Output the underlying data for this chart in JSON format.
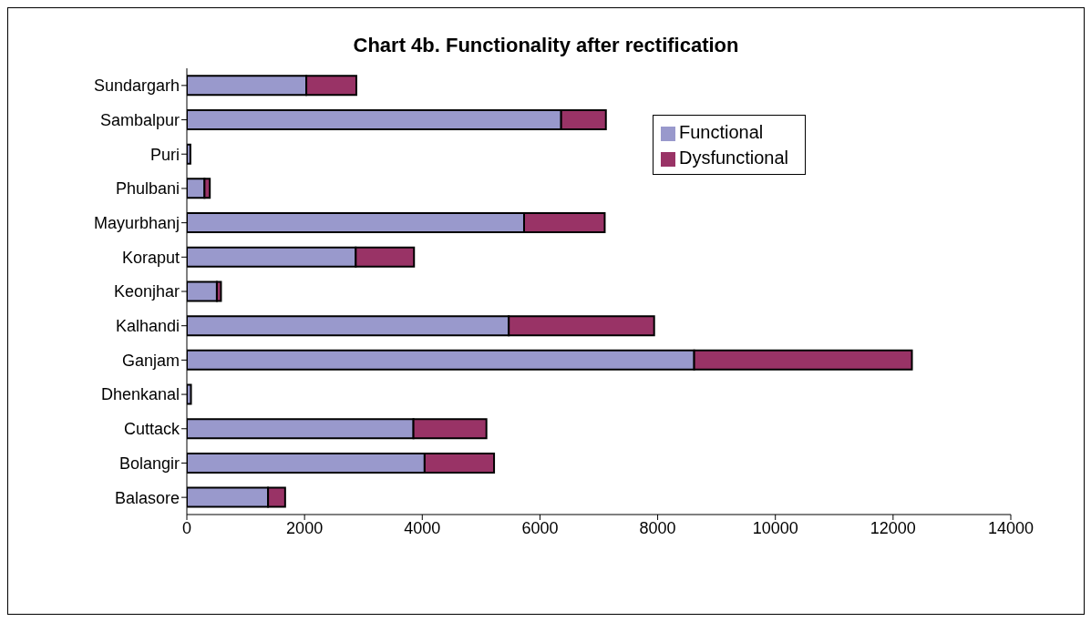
{
  "chart_data": {
    "type": "bar",
    "orientation": "horizontal",
    "stacked": true,
    "title": "Chart 4b. Functionality after rectification",
    "categories": [
      "Sundargarh",
      "Sambalpur",
      "Puri",
      "Phulbani",
      "Mayurbhanj",
      "Koraput",
      "Keonjhar",
      "Kalhandi",
      "Ganjam",
      "Dhenkanal",
      "Cuttack",
      "Bolangir",
      "Balasore"
    ],
    "series": [
      {
        "name": "Functional",
        "color": "#9999cc",
        "values": [
          2030,
          6360,
          60,
          300,
          5730,
          2870,
          510,
          5470,
          8620,
          70,
          3850,
          4040,
          1380
        ]
      },
      {
        "name": "Dysfunctional",
        "color": "#993366",
        "values": [
          850,
          760,
          null,
          90,
          1370,
          990,
          70,
          2470,
          3700,
          null,
          1240,
          1180,
          290
        ]
      }
    ],
    "xlim": [
      0,
      14000
    ],
    "xticks": [
      0,
      2000,
      4000,
      6000,
      8000,
      10000,
      12000,
      14000
    ],
    "grid": false,
    "legend": "top right"
  }
}
